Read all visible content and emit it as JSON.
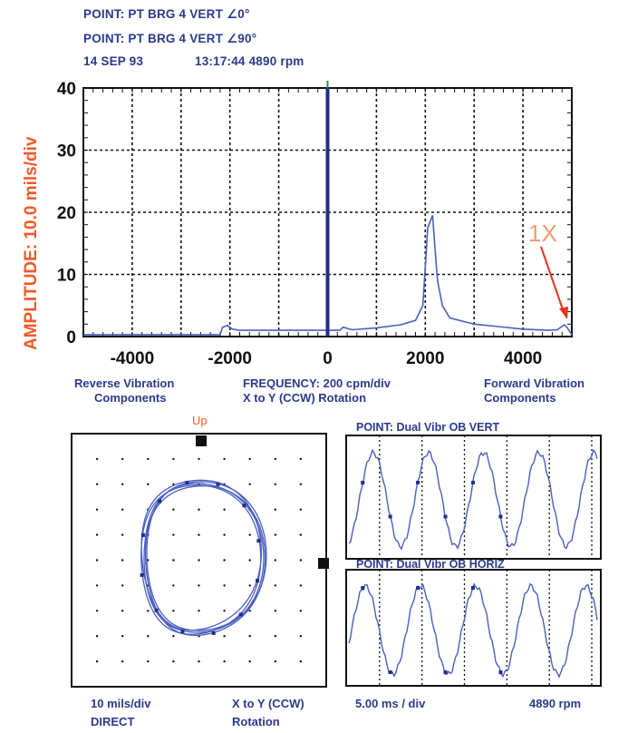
{
  "header": {
    "line1": "POINT:  PT BRG 4 VERT ∠0°",
    "line2": "POINT:  PT BRG 4 VERT ∠90°",
    "date": "14 SEP 93",
    "time_rpm": "13:17:44  4890 rpm"
  },
  "spectrum": {
    "ylabel": "AMPLITUDE:  10.0 mils/div",
    "annotation": "1X",
    "left_caption_1": "Reverse Vibration",
    "left_caption_2": "Components",
    "center_caption_1": "FREQUENCY: 200 cpm/div",
    "center_caption_2": "X to Y (CCW)  Rotation",
    "right_caption_1": "Forward Vibration",
    "right_caption_2": "Components"
  },
  "orbit": {
    "up_label": "Up",
    "caption_scale": "10 mils/div",
    "caption_mode": "DIRECT",
    "caption_dir_1": "X to Y (CCW)",
    "caption_dir_2": "Rotation"
  },
  "timebase": {
    "top_title": "POINT: Dual Vibr OB VERT",
    "bottom_title": "POINT: Dual Vibr OB HORIZ",
    "caption_scale": "5.00 ms / div",
    "caption_rpm": "4890 rpm"
  },
  "colors": {
    "trace": "#4a5fbf",
    "center_bar": "#1f2f8a",
    "accent": "#f05a28",
    "text": "#2a3a8c"
  },
  "chart_data": [
    {
      "type": "line",
      "xlabel": "",
      "ylabel": "AMPLITUDE:  10.0 mils/div",
      "xlim": [
        -5000,
        5000
      ],
      "ylim": [
        0,
        40
      ],
      "x_ticks": [
        -4000,
        -2000,
        0,
        2000,
        4000
      ],
      "x_tick_labels": [
        "-4000",
        "-2000",
        "0",
        "2000",
        "4000"
      ],
      "y_ticks": [
        0,
        10,
        20,
        30,
        40
      ],
      "y_tick_labels": [
        "0",
        "10",
        "20",
        "30",
        "40"
      ],
      "grid": true,
      "annotations": [
        {
          "text": "1X",
          "x": 4890,
          "y": 1.5
        }
      ],
      "series": [
        {
          "x": [
            -5000,
            -3000,
            -2200,
            -2150,
            -2050,
            -1950,
            -1800,
            -1000,
            0,
            250,
            320,
            500,
            1000,
            1500,
            1800,
            1950,
            2050,
            2150,
            2200,
            2250,
            2350,
            2500,
            3000,
            3500,
            4000,
            4500,
            4700,
            4850,
            4900,
            4950,
            5000
          ],
          "y": [
            0.3,
            0.3,
            0.3,
            1.5,
            1.8,
            1.2,
            1.0,
            1.0,
            1.0,
            1.0,
            1.5,
            1.1,
            1.4,
            1.9,
            2.6,
            5.0,
            17.5,
            19.5,
            14.0,
            9.0,
            5.0,
            3.0,
            2.0,
            1.6,
            1.2,
            1.0,
            1.1,
            1.9,
            1.5,
            0.9,
            0.3
          ]
        },
        {
          "x": [
            0,
            0
          ],
          "y": [
            0,
            40
          ]
        }
      ]
    },
    {
      "type": "scatter",
      "title": "",
      "xlabel": "10 mils/div",
      "ylabel": "",
      "grid": true
    },
    {
      "type": "line",
      "title": "POINT: Dual Vibr OB VERT",
      "xlabel": "5.00 ms / div",
      "period_divisions": 1.3,
      "grid": true
    },
    {
      "type": "line",
      "title": "POINT: Dual Vibr OB HORIZ",
      "xlabel": "5.00 ms / div",
      "period_divisions": 1.3,
      "grid": true
    }
  ]
}
